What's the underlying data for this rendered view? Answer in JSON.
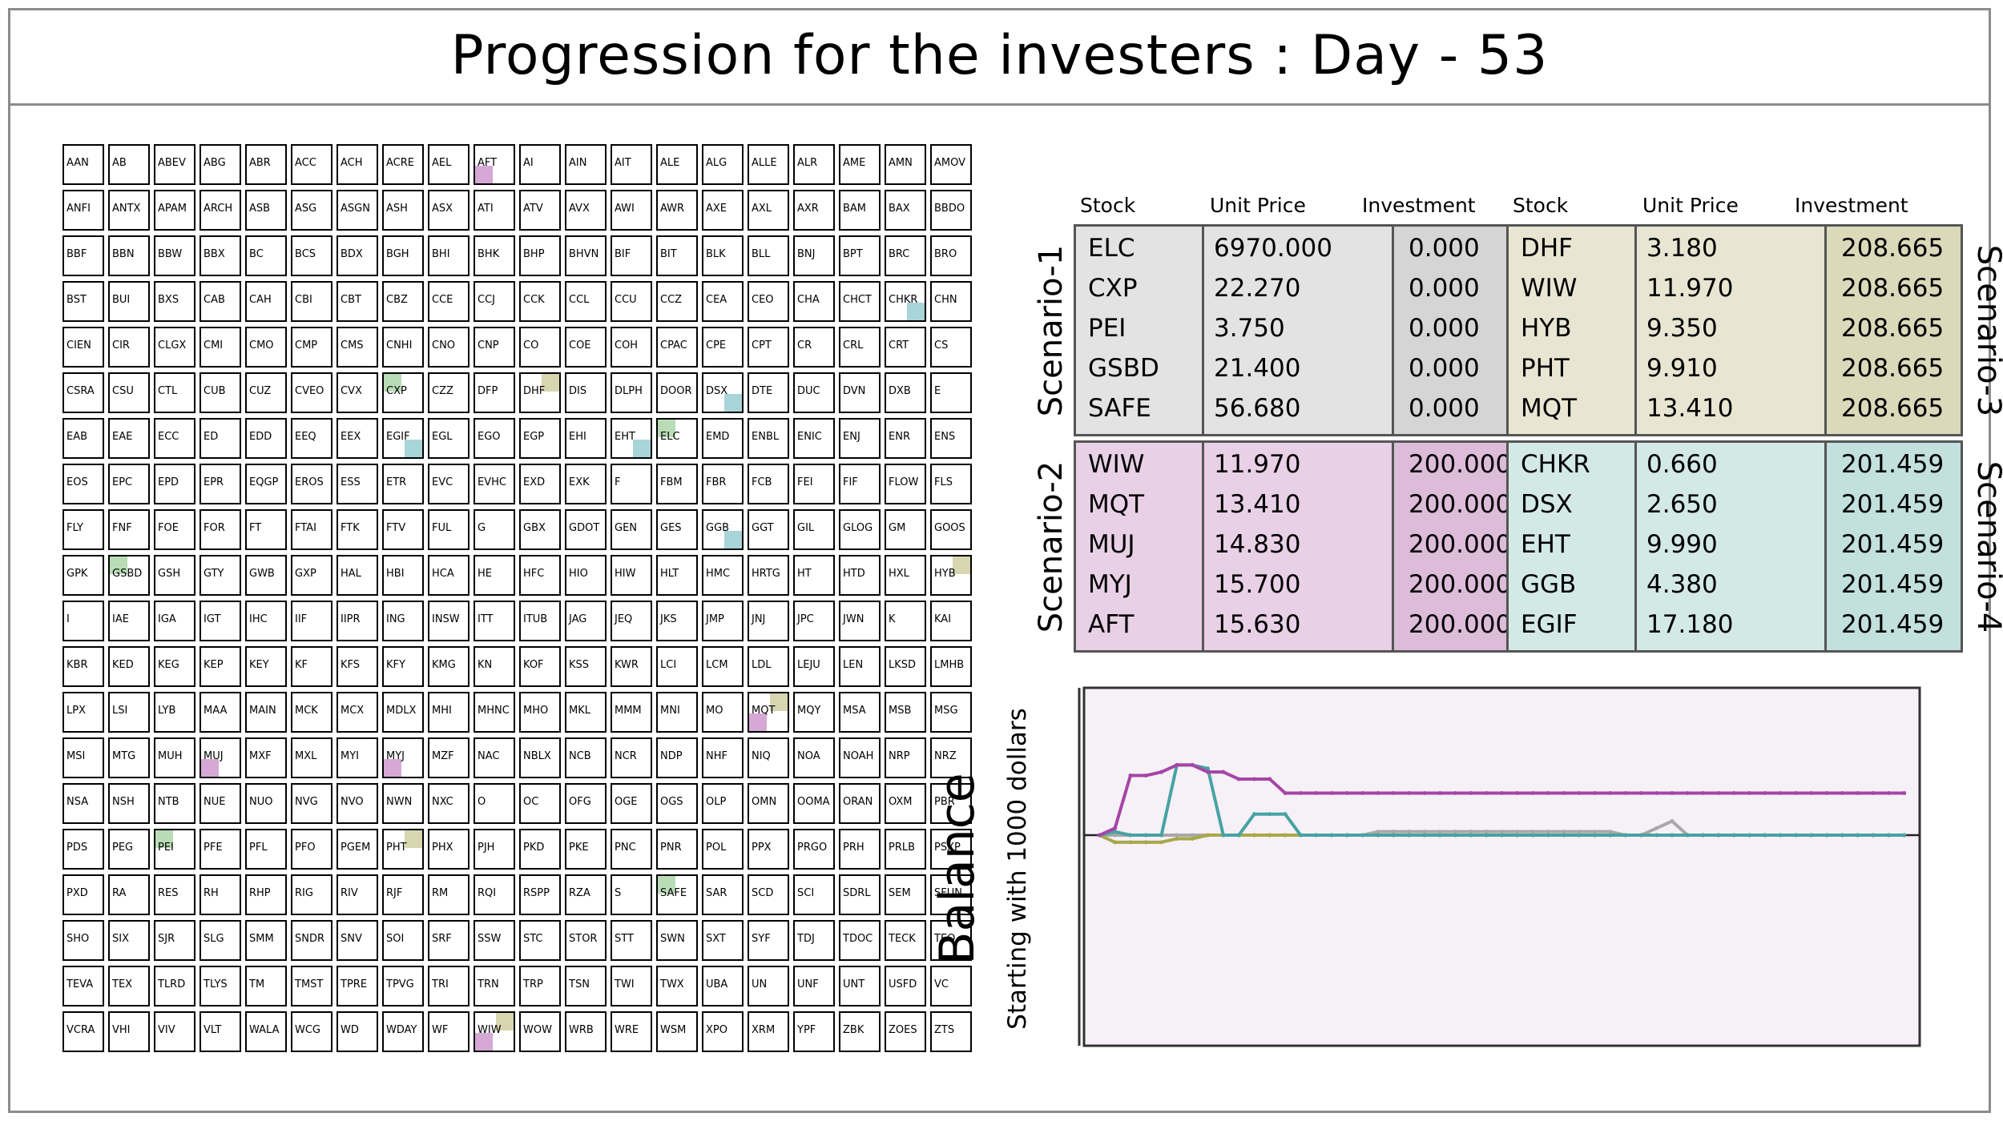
{
  "title": "Progression for the investers : Day - 53",
  "colors": {
    "scenario_1": "#e3e3e3",
    "scenario_2": "#e8d0e6",
    "scenario_3": "#e8e6d2",
    "scenario_4": "#d3e9e6",
    "line_scenario_1": "#a8a8a8",
    "line_scenario_2": "#a645a6",
    "line_scenario_3": "#a8a84a",
    "line_scenario_4": "#48a3a3",
    "mark_scenario_1": "#b9dcb6",
    "mark_scenario_2": "#d6a8d6",
    "mark_scenario_3": "#d7d6b0",
    "mark_scenario_4": "#a9d4d8"
  },
  "tickers": [
    "AAN",
    "AB",
    "ABEV",
    "ABG",
    "ABR",
    "ACC",
    "ACH",
    "ACRE",
    "AEL",
    "AFT",
    "AI",
    "AIN",
    "AIT",
    "ALE",
    "ALG",
    "ALLE",
    "ALR",
    "AME",
    "AMN",
    "AMOV",
    "ANFI",
    "ANTX",
    "APAM",
    "ARCH",
    "ASB",
    "ASG",
    "ASGN",
    "ASH",
    "ASX",
    "ATI",
    "ATV",
    "AVX",
    "AWI",
    "AWR",
    "AXE",
    "AXL",
    "AXR",
    "BAM",
    "BAX",
    "BBDO",
    "BBF",
    "BBN",
    "BBW",
    "BBX",
    "BC",
    "BCS",
    "BDX",
    "BGH",
    "BHI",
    "BHK",
    "BHP",
    "BHVN",
    "BIF",
    "BIT",
    "BLK",
    "BLL",
    "BNJ",
    "BPT",
    "BRC",
    "BRO",
    "BST",
    "BUI",
    "BXS",
    "CAB",
    "CAH",
    "CBI",
    "CBT",
    "CBZ",
    "CCE",
    "CCJ",
    "CCK",
    "CCL",
    "CCU",
    "CCZ",
    "CEA",
    "CEO",
    "CHA",
    "CHCT",
    "CHKR",
    "CHN",
    "CIEN",
    "CIR",
    "CLGX",
    "CMI",
    "CMO",
    "CMP",
    "CMS",
    "CNHI",
    "CNO",
    "CNP",
    "CO",
    "COE",
    "COH",
    "CPAC",
    "CPE",
    "CPT",
    "CR",
    "CRL",
    "CRT",
    "CS",
    "CSRA",
    "CSU",
    "CTL",
    "CUB",
    "CUZ",
    "CVEO",
    "CVX",
    "CXP",
    "CZZ",
    "DFP",
    "DHF",
    "DIS",
    "DLPH",
    "DOOR",
    "DSX",
    "DTE",
    "DUC",
    "DVN",
    "DXB",
    "E",
    "EAB",
    "EAE",
    "ECC",
    "ED",
    "EDD",
    "EEQ",
    "EEX",
    "EGIF",
    "EGL",
    "EGO",
    "EGP",
    "EHI",
    "EHT",
    "ELC",
    "EMD",
    "ENBL",
    "ENIC",
    "ENJ",
    "ENR",
    "ENS",
    "EOS",
    "EPC",
    "EPD",
    "EPR",
    "EQGP",
    "EROS",
    "ESS",
    "ETR",
    "EVC",
    "EVHC",
    "EXD",
    "EXK",
    "F",
    "FBM",
    "FBR",
    "FCB",
    "FEI",
    "FIF",
    "FLOW",
    "FLS",
    "FLY",
    "FNF",
    "FOE",
    "FOR",
    "FT",
    "FTAI",
    "FTK",
    "FTV",
    "FUL",
    "G",
    "GBX",
    "GDOT",
    "GEN",
    "GES",
    "GGB",
    "GGT",
    "GIL",
    "GLOG",
    "GM",
    "GOOS",
    "GPK",
    "GSBD",
    "GSH",
    "GTY",
    "GWB",
    "GXP",
    "HAL",
    "HBI",
    "HCA",
    "HE",
    "HFC",
    "HIO",
    "HIW",
    "HLT",
    "HMC",
    "HRTG",
    "HT",
    "HTD",
    "HXL",
    "HYB",
    "I",
    "IAE",
    "IGA",
    "IGT",
    "IHC",
    "IIF",
    "IIPR",
    "ING",
    "INSW",
    "ITT",
    "ITUB",
    "JAG",
    "JEQ",
    "JKS",
    "JMP",
    "JNJ",
    "JPC",
    "JWN",
    "K",
    "KAI",
    "KBR",
    "KED",
    "KEG",
    "KEP",
    "KEY",
    "KF",
    "KFS",
    "KFY",
    "KMG",
    "KN",
    "KOF",
    "KSS",
    "KWR",
    "LCI",
    "LCM",
    "LDL",
    "LEJU",
    "LEN",
    "LKSD",
    "LMHB",
    "LPX",
    "LSI",
    "LYB",
    "MAA",
    "MAIN",
    "MCK",
    "MCX",
    "MDLX",
    "MHI",
    "MHNC",
    "MHO",
    "MKL",
    "MMM",
    "MNI",
    "MO",
    "MQT",
    "MQY",
    "MSA",
    "MSB",
    "MSG",
    "MSI",
    "MTG",
    "MUH",
    "MUJ",
    "MXF",
    "MXL",
    "MYI",
    "MYJ",
    "MZF",
    "NAC",
    "NBLX",
    "NCB",
    "NCR",
    "NDP",
    "NHF",
    "NIQ",
    "NOA",
    "NOAH",
    "NRP",
    "NRZ",
    "NSA",
    "NSH",
    "NTB",
    "NUE",
    "NUO",
    "NVG",
    "NVO",
    "NWN",
    "NXC",
    "O",
    "OC",
    "OFG",
    "OGE",
    "OGS",
    "OLP",
    "OMN",
    "OOMA",
    "ORAN",
    "OXM",
    "PBR",
    "PDS",
    "PEG",
    "PEI",
    "PFE",
    "PFL",
    "PFO",
    "PGEM",
    "PHT",
    "PHX",
    "PJH",
    "PKD",
    "PKE",
    "PNC",
    "PNR",
    "POL",
    "PPX",
    "PRGO",
    "PRH",
    "PRLB",
    "PSXP",
    "PXD",
    "RA",
    "RES",
    "RH",
    "RHP",
    "RIG",
    "RIV",
    "RJF",
    "RM",
    "RQI",
    "RSPP",
    "RZA",
    "S",
    "SAFE",
    "SAR",
    "SCD",
    "SCI",
    "SDRL",
    "SEM",
    "SFUN",
    "SHO",
    "SIX",
    "SJR",
    "SLG",
    "SMM",
    "SNDR",
    "SNV",
    "SOI",
    "SRF",
    "SSW",
    "STC",
    "STOR",
    "STT",
    "SWN",
    "SXT",
    "SYF",
    "TDJ",
    "TDOC",
    "TECK",
    "TEO",
    "TEVA",
    "TEX",
    "TLRD",
    "TLYS",
    "TM",
    "TMST",
    "TPRE",
    "TPVG",
    "TRI",
    "TRN",
    "TRP",
    "TSN",
    "TWI",
    "TWX",
    "UBA",
    "UN",
    "UNF",
    "UNT",
    "USFD",
    "VC",
    "VCRA",
    "VHI",
    "VIV",
    "VLT",
    "WALA",
    "WCG",
    "WD",
    "WDAY",
    "WF",
    "WIW",
    "WOW",
    "WRB",
    "WRE",
    "WSM",
    "XPO",
    "XRM",
    "YPF",
    "ZBK",
    "ZOES",
    "ZTS"
  ],
  "marks": [
    {
      "ticker": "AFT",
      "scenario": 2,
      "corner": "bl"
    },
    {
      "ticker": "CHKR",
      "scenario": 4,
      "corner": "br"
    },
    {
      "ticker": "CXP",
      "scenario": 1,
      "corner": "tl"
    },
    {
      "ticker": "DHF",
      "scenario": 3,
      "corner": "tr"
    },
    {
      "ticker": "DSX",
      "scenario": 4,
      "corner": "br"
    },
    {
      "ticker": "EGIF",
      "scenario": 4,
      "corner": "br"
    },
    {
      "ticker": "EHT",
      "scenario": 4,
      "corner": "br"
    },
    {
      "ticker": "ELC",
      "scenario": 1,
      "corner": "tl"
    },
    {
      "ticker": "GGB",
      "scenario": 4,
      "corner": "br"
    },
    {
      "ticker": "GSBD",
      "scenario": 1,
      "corner": "tl"
    },
    {
      "ticker": "HYB",
      "scenario": 3,
      "corner": "tr"
    },
    {
      "ticker": "MQT",
      "scenario": 3,
      "corner": "tr"
    },
    {
      "ticker": "MQT",
      "scenario": 2,
      "corner": "bl"
    },
    {
      "ticker": "MUJ",
      "scenario": 2,
      "corner": "bl"
    },
    {
      "ticker": "MYJ",
      "scenario": 2,
      "corner": "bl"
    },
    {
      "ticker": "PEI",
      "scenario": 1,
      "corner": "tl"
    },
    {
      "ticker": "PHT",
      "scenario": 3,
      "corner": "tr"
    },
    {
      "ticker": "SAFE",
      "scenario": 1,
      "corner": "tl"
    },
    {
      "ticker": "WIW",
      "scenario": 3,
      "corner": "tr"
    },
    {
      "ticker": "WIW",
      "scenario": 2,
      "corner": "bl"
    }
  ],
  "table_headers": {
    "stock": "Stock",
    "unit_price": "Unit Price",
    "investment": "Investment"
  },
  "scenarios": [
    {
      "label": "Scenario-1",
      "rows": [
        {
          "stock": "ELC",
          "price": "6970.000",
          "investment": "0.000"
        },
        {
          "stock": "CXP",
          "price": "22.270",
          "investment": "0.000"
        },
        {
          "stock": "PEI",
          "price": "3.750",
          "investment": "0.000"
        },
        {
          "stock": "GSBD",
          "price": "21.400",
          "investment": "0.000"
        },
        {
          "stock": "SAFE",
          "price": "56.680",
          "investment": "0.000"
        }
      ]
    },
    {
      "label": "Scenario-2",
      "rows": [
        {
          "stock": "WIW",
          "price": "11.970",
          "investment": "200.000"
        },
        {
          "stock": "MQT",
          "price": "13.410",
          "investment": "200.000"
        },
        {
          "stock": "MUJ",
          "price": "14.830",
          "investment": "200.000"
        },
        {
          "stock": "MYJ",
          "price": "15.700",
          "investment": "200.000"
        },
        {
          "stock": "AFT",
          "price": "15.630",
          "investment": "200.000"
        }
      ]
    },
    {
      "label": "Scenario-3",
      "rows": [
        {
          "stock": "DHF",
          "price": "3.180",
          "investment": "208.665"
        },
        {
          "stock": "WIW",
          "price": "11.970",
          "investment": "208.665"
        },
        {
          "stock": "HYB",
          "price": "9.350",
          "investment": "208.665"
        },
        {
          "stock": "PHT",
          "price": "9.910",
          "investment": "208.665"
        },
        {
          "stock": "MQT",
          "price": "13.410",
          "investment": "208.665"
        }
      ]
    },
    {
      "label": "Scenario-4",
      "rows": [
        {
          "stock": "CHKR",
          "price": "0.660",
          "investment": "201.459"
        },
        {
          "stock": "DSX",
          "price": "2.650",
          "investment": "201.459"
        },
        {
          "stock": "EHT",
          "price": "9.990",
          "investment": "201.459"
        },
        {
          "stock": "GGB",
          "price": "4.380",
          "investment": "201.459"
        },
        {
          "stock": "EGIF",
          "price": "17.180",
          "investment": "201.459"
        }
      ]
    }
  ],
  "chart_data": {
    "type": "line",
    "title": "",
    "ylabel": "Balance",
    "ylabel_sub": "Starting with 1000 dollars",
    "xlabel": "",
    "x": [
      1,
      2,
      3,
      4,
      5,
      6,
      7,
      8,
      9,
      10,
      11,
      12,
      13,
      14,
      15,
      16,
      17,
      18,
      19,
      20,
      21,
      22,
      23,
      24,
      25,
      26,
      27,
      28,
      29,
      30,
      31,
      32,
      33,
      34,
      35,
      36,
      37,
      38,
      39,
      40,
      41,
      42,
      43,
      44,
      45,
      46,
      47,
      48,
      49,
      50,
      51,
      52,
      53
    ],
    "xlim": [
      0,
      54
    ],
    "ylim": [
      700,
      1210
    ],
    "baseline": 1000,
    "grid": false,
    "series": [
      {
        "scenario": 1,
        "values": [
          1000,
          1000,
          1000,
          1000,
          1000,
          1000,
          1000,
          1000,
          1000,
          1000,
          1000,
          1000,
          1000,
          1000,
          1000,
          1000,
          1000,
          1000,
          1005,
          1005,
          1005,
          1005,
          1005,
          1005,
          1005,
          1005,
          1005,
          1005,
          1005,
          1005,
          1005,
          1005,
          1005,
          1005,
          1000,
          1000,
          1010,
          1020,
          1000,
          1000,
          1000,
          1000,
          1000,
          1000,
          1000,
          1000,
          1000,
          1000,
          1000,
          1000,
          1000,
          1000,
          1000
        ]
      },
      {
        "scenario": 2,
        "values": [
          1000,
          1010,
          1085,
          1085,
          1090,
          1100,
          1100,
          1090,
          1090,
          1080,
          1080,
          1080,
          1060,
          1060,
          1060,
          1060,
          1060,
          1060,
          1060,
          1060,
          1060,
          1060,
          1060,
          1060,
          1060,
          1060,
          1060,
          1060,
          1060,
          1060,
          1060,
          1060,
          1060,
          1060,
          1060,
          1060,
          1060,
          1060,
          1060,
          1060,
          1060,
          1060,
          1060,
          1060,
          1060,
          1060,
          1060,
          1060,
          1060,
          1060,
          1060,
          1060,
          1060
        ]
      },
      {
        "scenario": 3,
        "values": [
          1000,
          990,
          990,
          990,
          990,
          995,
          995,
          1000,
          1000,
          1000,
          1000,
          1000,
          1000,
          1000,
          1000,
          1000,
          1000,
          1000,
          1000,
          1000,
          1000,
          1000,
          1000,
          1000,
          1000,
          1000,
          1000,
          1000,
          1000,
          1000,
          1000,
          1000,
          1000,
          1000,
          1000,
          1000,
          1000,
          1000,
          1000,
          1000,
          1000,
          1000,
          1000,
          1000,
          1000,
          1000,
          1000,
          1000,
          1000,
          1000,
          1000,
          1000,
          1000
        ]
      },
      {
        "scenario": 4,
        "values": [
          1000,
          1005,
          1000,
          1000,
          1000,
          1100,
          1100,
          1095,
          1000,
          1000,
          1030,
          1030,
          1030,
          1000,
          1000,
          1000,
          1000,
          1000,
          1000,
          1000,
          1000,
          1000,
          1000,
          1000,
          1000,
          1000,
          1000,
          1000,
          1000,
          1000,
          1000,
          1000,
          1000,
          1000,
          1000,
          1000,
          1000,
          1000,
          1000,
          1000,
          1000,
          1000,
          1000,
          1000,
          1000,
          1000,
          1000,
          1000,
          1000,
          1000,
          1000,
          1000,
          1000
        ]
      }
    ]
  }
}
